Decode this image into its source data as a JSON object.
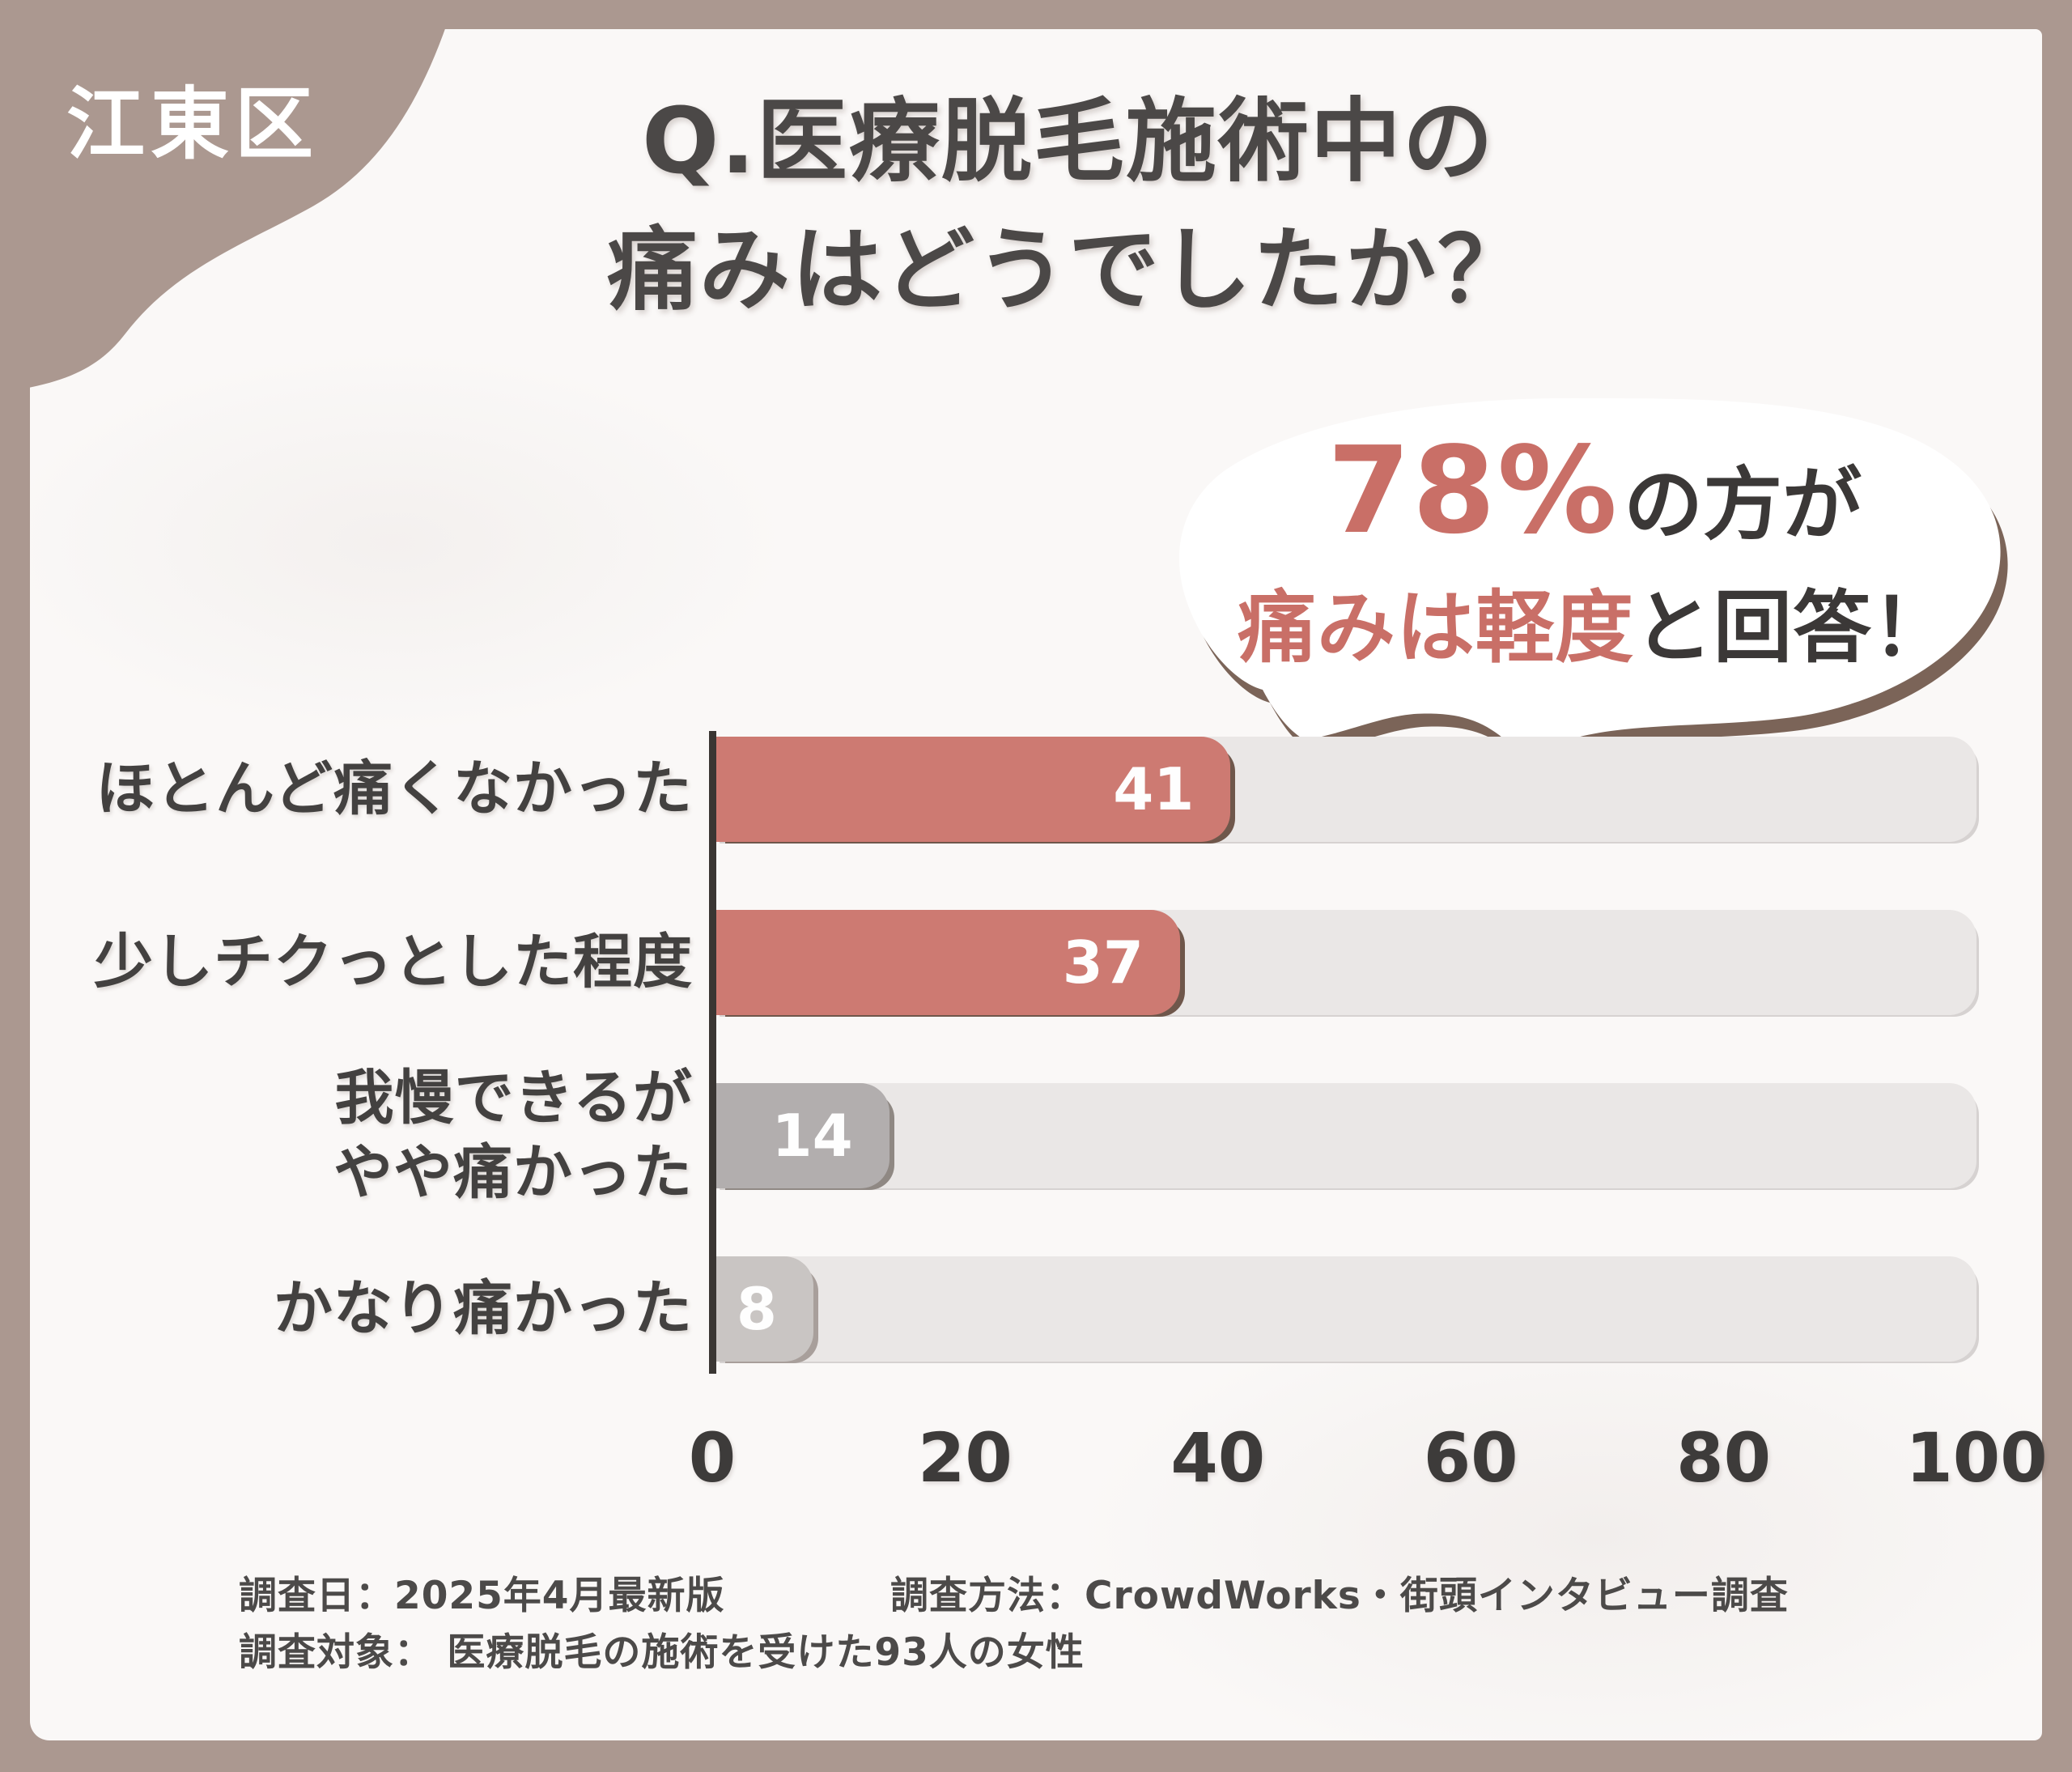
{
  "badge": {
    "label": "江東区"
  },
  "title": {
    "line1": "Q.医療脱毛施術中の",
    "line2": "痛みはどうでしたか？"
  },
  "bubble": {
    "percent": "78%",
    "percent_suffix": "の方が",
    "line2_highlight": "痛みは軽度",
    "line2_rest": "と回答！"
  },
  "chart_data": {
    "type": "bar",
    "orientation": "horizontal",
    "title": "Q.医療脱毛施術中の痛みはどうでしたか？",
    "categories": [
      "ほとんど痛くなかった",
      "少しチクっとした程度",
      "我慢できるが やや痛かった",
      "かなり痛かった"
    ],
    "values": [
      41,
      37,
      14,
      8
    ],
    "rows": [
      {
        "label_lines": [
          "ほとんど痛くなかった",
          ""
        ],
        "value": 41,
        "bar_color": "#cd7a72",
        "shadow_color": "#6f574b"
      },
      {
        "label_lines": [
          "少しチクっとした程度",
          ""
        ],
        "value": 37,
        "bar_color": "#cd7a72",
        "shadow_color": "#6f574b"
      },
      {
        "label_lines": [
          "我慢できるが",
          "やや痛かった"
        ],
        "value": 14,
        "bar_color": "#b2aeae",
        "shadow_color": "#8f8883"
      },
      {
        "label_lines": [
          "かなり痛かった",
          ""
        ],
        "value": 8,
        "bar_color": "#c9c5c3",
        "shadow_color": "#a89f9b"
      }
    ],
    "xlabel": "",
    "ylabel": "",
    "xlim": [
      0,
      100
    ],
    "x_ticks": [
      0,
      20,
      40,
      60,
      80,
      100
    ],
    "grid": false,
    "legend": false,
    "value_label_position": "inside-end"
  },
  "footer": {
    "survey_date": "調査日：2025年4月最新版",
    "survey_method": "調査方法：CrowdWorks・街頭インタビュー調査",
    "survey_target": "調査対象： 医療脱毛の施術を受けた93人の女性"
  },
  "colors": {
    "frame": "#ab9890",
    "card": "#faf8f7",
    "ink": "#4b4847",
    "red_bar": "#cd7a72",
    "red_text": "#c96f67",
    "track": "#eae7e6",
    "bubble_shadow": "#7b6458",
    "axis": "#3a3633"
  }
}
